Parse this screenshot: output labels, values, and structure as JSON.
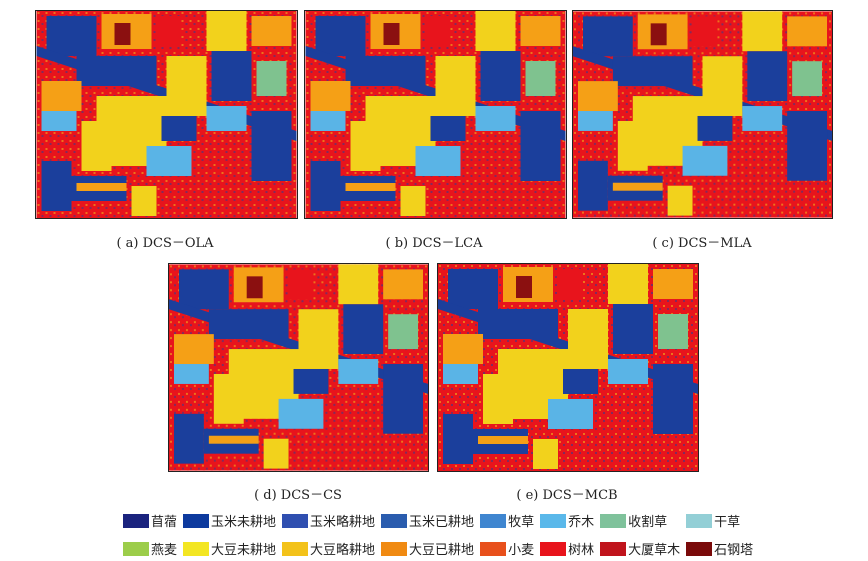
{
  "captions": [
    "( a)  DCS－OLA",
    "( b)  DCS－LCA",
    "( c)  DCS－MLA",
    "( d)  DCS－CS",
    "( e)  DCS－MCB"
  ],
  "legend": [
    {
      "label": "苜蓿",
      "color": "#1a237e"
    },
    {
      "label": "玉米未耕地",
      "color": "#0d3a9e"
    },
    {
      "label": "玉米略耕地",
      "color": "#2f4fb0"
    },
    {
      "label": "玉米已耕地",
      "color": "#2a5cae"
    },
    {
      "label": "牧草",
      "color": "#3f86d0"
    },
    {
      "label": "乔木",
      "color": "#5ab8ea"
    },
    {
      "label": "收割草",
      "color": "#7fc29b"
    },
    {
      "label": "干草",
      "color": "#93cfd6"
    },
    {
      "label": "燕麦",
      "color": "#9ccd4a"
    },
    {
      "label": "大豆未耕地",
      "color": "#f3e623"
    },
    {
      "label": "大豆略耕地",
      "color": "#f3c21a"
    },
    {
      "label": "大豆已耕地",
      "color": "#f08a12"
    },
    {
      "label": "小麦",
      "color": "#e8501c"
    },
    {
      "label": "树林",
      "color": "#e8141c"
    },
    {
      "label": "大厦草木",
      "color": "#c0141c"
    },
    {
      "label": "石钢塔",
      "color": "#7a0a0a"
    }
  ]
}
